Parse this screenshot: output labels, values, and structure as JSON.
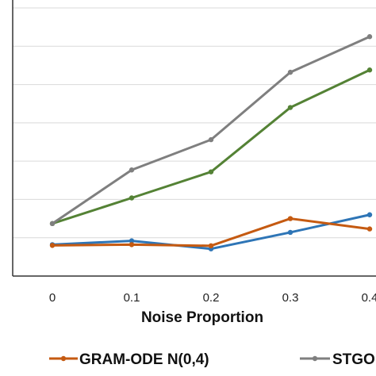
{
  "chart_data": {
    "type": "line",
    "title": "",
    "xlabel": "Noise Proportion",
    "ylabel": "",
    "categories": [
      "0",
      "0.1",
      "0.2",
      "0.3",
      "0.4"
    ],
    "x": [
      0,
      0.1,
      0.2,
      0.3,
      0.4
    ],
    "ylim": [
      0,
      7
    ],
    "grid": true,
    "legend_position": "bottom",
    "series": [
      {
        "name": "",
        "color": "#2e75b6",
        "values": [
          0.82,
          0.92,
          0.71,
          1.14,
          1.6
        ]
      },
      {
        "name": "GRAM-ODE N(0,4)",
        "color": "#c55a11",
        "values": [
          0.8,
          0.82,
          0.79,
          1.5,
          1.23
        ]
      },
      {
        "name": "",
        "color": "#548235",
        "values": [
          1.37,
          2.04,
          2.72,
          4.4,
          5.38
        ]
      },
      {
        "name": "STGO",
        "color": "#7f7f7f",
        "values": [
          1.37,
          2.77,
          3.56,
          5.32,
          6.25
        ]
      }
    ],
    "legend": [
      {
        "label": "GRAM-ODE N(0,4)",
        "color": "#c55a11"
      },
      {
        "label": "STGO",
        "color": "#7f7f7f"
      }
    ]
  }
}
